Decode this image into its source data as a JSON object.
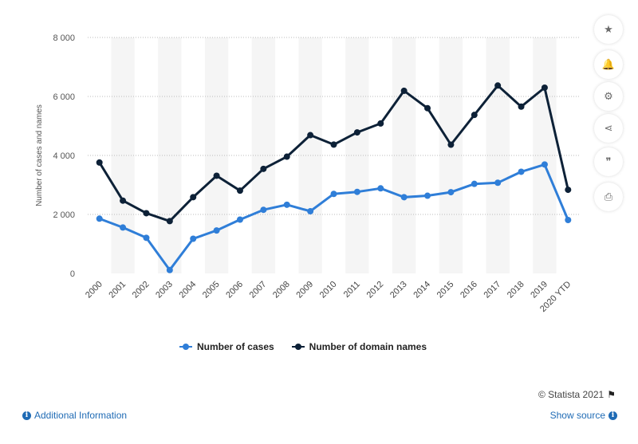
{
  "chart_data": {
    "type": "line",
    "categories": [
      "2000",
      "2001",
      "2002",
      "2003",
      "2004",
      "2005",
      "2006",
      "2007",
      "2008",
      "2009",
      "2010",
      "2011",
      "2012",
      "2013",
      "2014",
      "2015",
      "2016",
      "2017",
      "2018",
      "2019",
      "2020 YTD"
    ],
    "series": [
      {
        "name": "Number of cases",
        "color": "#2f7ed8",
        "values": [
          1857,
          1557,
          1207,
          115,
          1176,
          1456,
          1824,
          2156,
          2329,
          2107,
          2696,
          2764,
          2884,
          2585,
          2634,
          2754,
          3036,
          3074,
          3447,
          3693,
          1811
        ]
      },
      {
        "name": "Number of domain names",
        "color": "#0d2137",
        "values": [
          3760,
          2467,
          2042,
          1772,
          2585,
          3312,
          2806,
          3545,
          3958,
          4688,
          4367,
          4781,
          5084,
          6191,
          5603,
          4364,
          5374,
          6370,
          5655,
          6298,
          2836
        ]
      }
    ],
    "ylabel": "Number of cases and names",
    "xlabel": "",
    "ylim": [
      0,
      8000
    ],
    "yticks": [
      0,
      2000,
      4000,
      6000,
      8000
    ],
    "ytick_labels": [
      "0",
      "2 000",
      "4 000",
      "6 000",
      "8 000"
    ],
    "grid": true,
    "legend_position": "bottom"
  },
  "legend": {
    "items": [
      {
        "label": "Number of cases",
        "color": "#2f7ed8"
      },
      {
        "label": "Number of domain names",
        "color": "#0d2137"
      }
    ]
  },
  "footer": {
    "credit": "© Statista 2021",
    "additional_info": "Additional Information",
    "show_source": "Show source"
  },
  "sidebar": {
    "buttons": [
      {
        "name": "favorite-button",
        "icon": "star-icon",
        "glyph": "★"
      },
      {
        "name": "notification-button",
        "icon": "bell-icon",
        "glyph": "🔔"
      },
      {
        "name": "settings-button",
        "icon": "gear-icon",
        "glyph": "⚙"
      },
      {
        "name": "share-button",
        "icon": "share-icon",
        "glyph": "⋖"
      },
      {
        "name": "cite-button",
        "icon": "quote-icon",
        "glyph": "❞"
      },
      {
        "name": "print-button",
        "icon": "printer-icon",
        "glyph": "⎙"
      }
    ]
  }
}
